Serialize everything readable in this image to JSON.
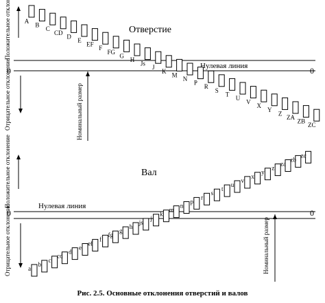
{
  "holes": {
    "title": "Отверстие",
    "zero_line_label": "Нулевая линия",
    "zero_left": "0",
    "zero_right": "0",
    "positive_label": "Положительное отклонение",
    "negative_label": "Отрицательное отклонение",
    "nominal_label": "Номинальный размер",
    "letters": [
      "A",
      "B",
      "C",
      "CD",
      "D",
      "E",
      "EF",
      "F",
      "FG",
      "G",
      "H",
      "Js",
      "J",
      "K",
      "M",
      "N",
      "P",
      "R",
      "S",
      "T",
      "U",
      "V",
      "X",
      "Y",
      "Z",
      "ZA",
      "ZB",
      "ZC"
    ]
  },
  "shafts": {
    "title": "Вал",
    "zero_line_label": "Нулевая линия",
    "zero_left": "0",
    "zero_right": "0",
    "positive_label": "Положительное отклонение",
    "negative_label": "Отрицательное отклонение",
    "nominal_label": "Номинальный размер",
    "letters": [
      "a",
      "b",
      "c",
      "cd",
      "d",
      "e",
      "ef",
      "f",
      "fg",
      "g",
      "h",
      "js",
      "j",
      "k",
      "m",
      "n",
      "p",
      "r",
      "s",
      "t",
      "u",
      "v",
      "x",
      "y",
      "z",
      "za",
      "zb",
      "zc"
    ]
  },
  "caption": "Рис. 2.5. Основные отклонения отверстий и валов"
}
